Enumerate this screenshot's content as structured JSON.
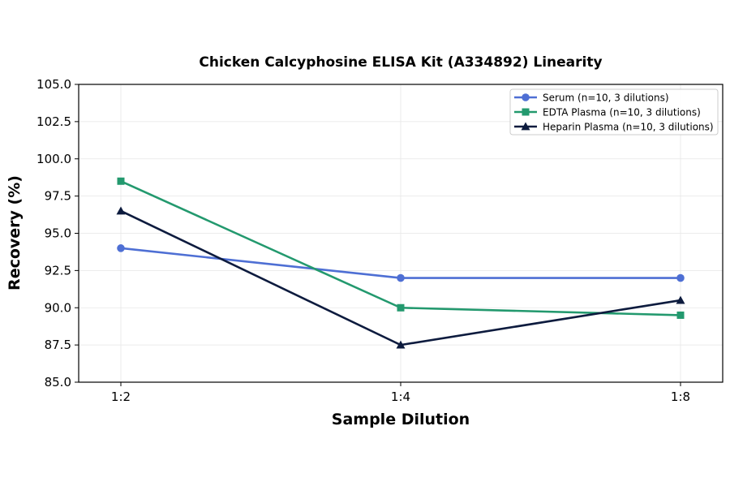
{
  "chart_data": {
    "type": "line",
    "title": "Chicken Calcyphosine ELISA Kit (A334892) Linearity",
    "xlabel": "Sample Dilution",
    "ylabel": "Recovery (%)",
    "categories": [
      "1:2",
      "1:4",
      "1:8"
    ],
    "ylim": [
      85.0,
      105.0
    ],
    "yticks": [
      "85.0",
      "87.5",
      "90.0",
      "92.5",
      "95.0",
      "97.5",
      "100.0",
      "102.5",
      "105.0"
    ],
    "grid": true,
    "legend_position": "top-right",
    "series": [
      {
        "name": "Serum (n=10, 3 dilutions)",
        "values": [
          94.0,
          92.0,
          92.0
        ],
        "color": "#4e6fd4",
        "marker": "circle"
      },
      {
        "name": "EDTA Plasma (n=10, 3 dilutions)",
        "values": [
          98.5,
          90.0,
          89.5
        ],
        "color": "#23996e",
        "marker": "square"
      },
      {
        "name": "Heparin Plasma (n=10, 3 dilutions)",
        "values": [
          96.5,
          87.5,
          90.5
        ],
        "color": "#0d1b3e",
        "marker": "triangle"
      }
    ]
  }
}
